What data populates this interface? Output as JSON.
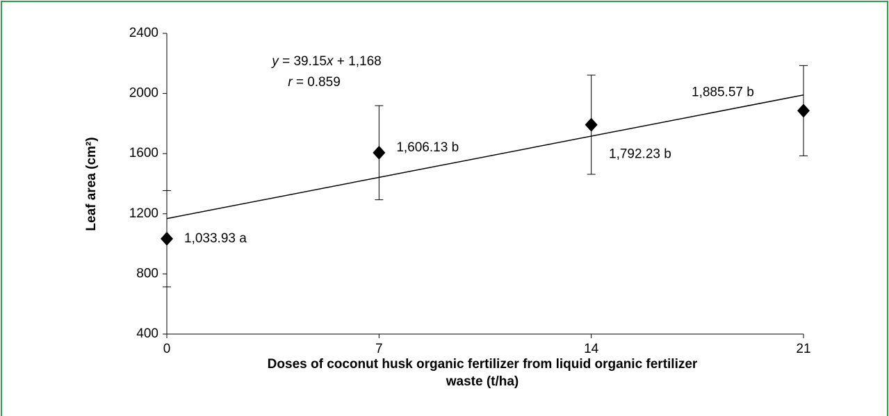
{
  "chart_data": {
    "type": "scatter",
    "ylabel": "Leaf area  (cm²)",
    "xlabel": [
      "Doses of  coconut husk organic fertilizer from liquid organic fertilizer",
      "waste (t/ha)"
    ],
    "x": [
      0,
      7,
      14,
      21
    ],
    "series": [
      {
        "color": "#000000",
        "values": [
          1033.93,
          1606.13,
          1792.23,
          1885.57
        ],
        "value_labels": [
          "1,033.93  a",
          "1,606.13  b",
          "1,792.23  b",
          "1,885.57  b"
        ],
        "errors": [
          320,
          313,
          330,
          300
        ]
      }
    ],
    "trendline": {
      "slope": 39.15,
      "intercept": 1168,
      "equation": [
        "y",
        " = 39.15",
        "x",
        " + 1,168"
      ],
      "r": [
        "r",
        " = 0.859"
      ]
    },
    "xlim": [
      0,
      21
    ],
    "xticks": [
      0,
      7,
      14,
      21
    ],
    "ylim": [
      400,
      2400
    ],
    "yticks": [
      400,
      800,
      1200,
      1600,
      2000,
      2400
    ]
  }
}
